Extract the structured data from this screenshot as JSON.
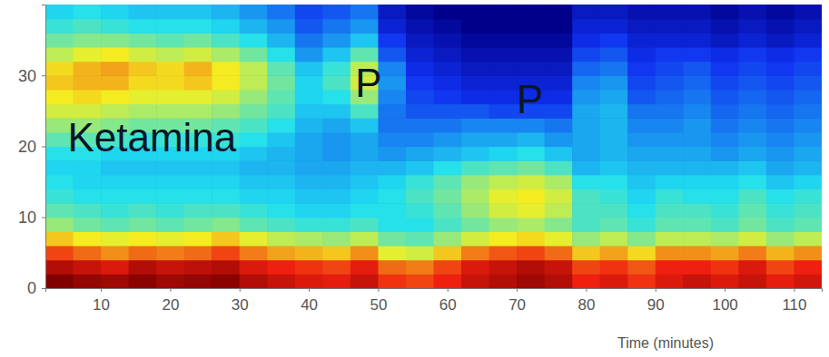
{
  "chart_data": {
    "type": "heatmap",
    "x": [
      4,
      8,
      12,
      16,
      20,
      24,
      28,
      32,
      36,
      40,
      44,
      48,
      52,
      56,
      60,
      64,
      68,
      72,
      76,
      80,
      84,
      88,
      92,
      96,
      100,
      104,
      108,
      112
    ],
    "y": [
      1,
      3,
      5,
      7,
      9,
      11,
      13,
      15,
      17,
      19,
      21,
      23,
      25,
      27,
      29,
      31,
      33,
      35,
      37,
      39
    ],
    "z": [
      [
        95,
        93,
        92,
        94,
        92,
        93,
        94,
        90,
        88,
        86,
        85,
        88,
        82,
        80,
        84,
        88,
        90,
        92,
        90,
        84,
        86,
        82,
        86,
        88,
        86,
        88,
        85,
        87
      ],
      [
        90,
        88,
        86,
        90,
        88,
        89,
        90,
        86,
        84,
        82,
        80,
        85,
        76,
        74,
        80,
        86,
        88,
        90,
        88,
        80,
        82,
        78,
        84,
        84,
        82,
        86,
        80,
        84
      ],
      [
        80,
        76,
        72,
        76,
        74,
        76,
        80,
        74,
        70,
        68,
        66,
        72,
        60,
        58,
        66,
        74,
        78,
        80,
        76,
        66,
        70,
        64,
        72,
        72,
        70,
        74,
        68,
        72
      ],
      [
        66,
        62,
        60,
        62,
        60,
        62,
        66,
        60,
        56,
        54,
        52,
        56,
        48,
        46,
        52,
        58,
        62,
        64,
        60,
        52,
        56,
        50,
        56,
        56,
        54,
        58,
        52,
        56
      ],
      [
        52,
        48,
        46,
        48,
        46,
        48,
        50,
        46,
        44,
        42,
        42,
        44,
        40,
        40,
        44,
        48,
        52,
        54,
        50,
        44,
        46,
        42,
        46,
        46,
        44,
        48,
        44,
        46
      ],
      [
        46,
        44,
        42,
        44,
        42,
        44,
        44,
        42,
        40,
        38,
        38,
        40,
        40,
        42,
        46,
        52,
        58,
        60,
        56,
        44,
        44,
        40,
        44,
        44,
        42,
        46,
        42,
        44
      ],
      [
        42,
        40,
        40,
        40,
        40,
        40,
        40,
        38,
        38,
        36,
        36,
        38,
        40,
        44,
        48,
        54,
        60,
        62,
        58,
        44,
        42,
        38,
        42,
        40,
        40,
        44,
        40,
        42
      ],
      [
        40,
        38,
        38,
        38,
        38,
        38,
        38,
        36,
        36,
        34,
        34,
        36,
        38,
        42,
        46,
        52,
        56,
        58,
        54,
        40,
        40,
        36,
        38,
        38,
        38,
        40,
        36,
        38
      ],
      [
        38,
        38,
        36,
        36,
        36,
        36,
        36,
        34,
        34,
        32,
        32,
        34,
        34,
        36,
        40,
        44,
        46,
        48,
        44,
        34,
        36,
        34,
        34,
        34,
        34,
        36,
        32,
        34
      ],
      [
        40,
        40,
        38,
        38,
        38,
        38,
        38,
        36,
        34,
        32,
        30,
        32,
        30,
        32,
        34,
        36,
        38,
        40,
        36,
        32,
        34,
        32,
        32,
        32,
        30,
        32,
        30,
        32
      ],
      [
        46,
        46,
        44,
        42,
        42,
        42,
        42,
        40,
        36,
        32,
        30,
        32,
        28,
        28,
        30,
        32,
        32,
        34,
        30,
        32,
        34,
        30,
        30,
        30,
        28,
        30,
        28,
        30
      ],
      [
        52,
        52,
        50,
        48,
        48,
        48,
        46,
        44,
        40,
        34,
        32,
        36,
        26,
        26,
        26,
        28,
        28,
        28,
        26,
        32,
        34,
        28,
        28,
        30,
        26,
        28,
        26,
        28
      ],
      [
        58,
        58,
        56,
        54,
        54,
        54,
        52,
        48,
        44,
        36,
        36,
        44,
        26,
        22,
        22,
        22,
        20,
        20,
        20,
        32,
        34,
        26,
        26,
        28,
        24,
        26,
        24,
        26
      ],
      [
        62,
        64,
        62,
        60,
        60,
        60,
        58,
        52,
        46,
        38,
        40,
        52,
        28,
        20,
        18,
        16,
        16,
        16,
        16,
        30,
        32,
        22,
        24,
        26,
        22,
        24,
        22,
        24
      ],
      [
        66,
        68,
        68,
        64,
        64,
        66,
        62,
        56,
        48,
        38,
        44,
        58,
        30,
        18,
        16,
        14,
        14,
        14,
        14,
        28,
        30,
        20,
        22,
        24,
        20,
        22,
        20,
        22
      ],
      [
        64,
        68,
        70,
        66,
        64,
        68,
        62,
        56,
        46,
        36,
        42,
        56,
        28,
        16,
        14,
        12,
        12,
        12,
        12,
        24,
        26,
        18,
        20,
        22,
        18,
        20,
        18,
        20
      ],
      [
        56,
        60,
        62,
        58,
        56,
        58,
        54,
        48,
        40,
        30,
        36,
        46,
        22,
        14,
        12,
        10,
        10,
        10,
        10,
        20,
        22,
        16,
        18,
        18,
        16,
        18,
        16,
        18
      ],
      [
        48,
        50,
        50,
        48,
        46,
        48,
        44,
        40,
        34,
        26,
        30,
        36,
        18,
        12,
        10,
        8,
        8,
        8,
        8,
        16,
        18,
        14,
        14,
        14,
        12,
        14,
        12,
        14
      ],
      [
        42,
        44,
        42,
        40,
        40,
        40,
        38,
        34,
        30,
        22,
        26,
        30,
        14,
        10,
        8,
        6,
        6,
        6,
        6,
        14,
        14,
        12,
        12,
        12,
        10,
        12,
        10,
        12
      ],
      [
        38,
        40,
        38,
        36,
        36,
        36,
        34,
        30,
        26,
        20,
        22,
        26,
        12,
        8,
        6,
        6,
        6,
        6,
        6,
        12,
        12,
        10,
        10,
        10,
        8,
        10,
        8,
        10
      ]
    ],
    "xlim": [
      2,
      114
    ],
    "ylim": [
      0,
      40
    ],
    "xticks": [
      10,
      20,
      30,
      40,
      50,
      60,
      70,
      80,
      90,
      100,
      110
    ],
    "yticks": [
      0,
      10,
      20,
      30
    ],
    "x_label": "Time (minutes)",
    "grid": false,
    "annotations": [
      {
        "text": "Ketamina",
        "x": 5.2,
        "y": 21.3
      },
      {
        "text": "P",
        "x": 46.7,
        "y": 29
      },
      {
        "text": "P",
        "x": 70,
        "y": 26.7
      }
    ]
  }
}
